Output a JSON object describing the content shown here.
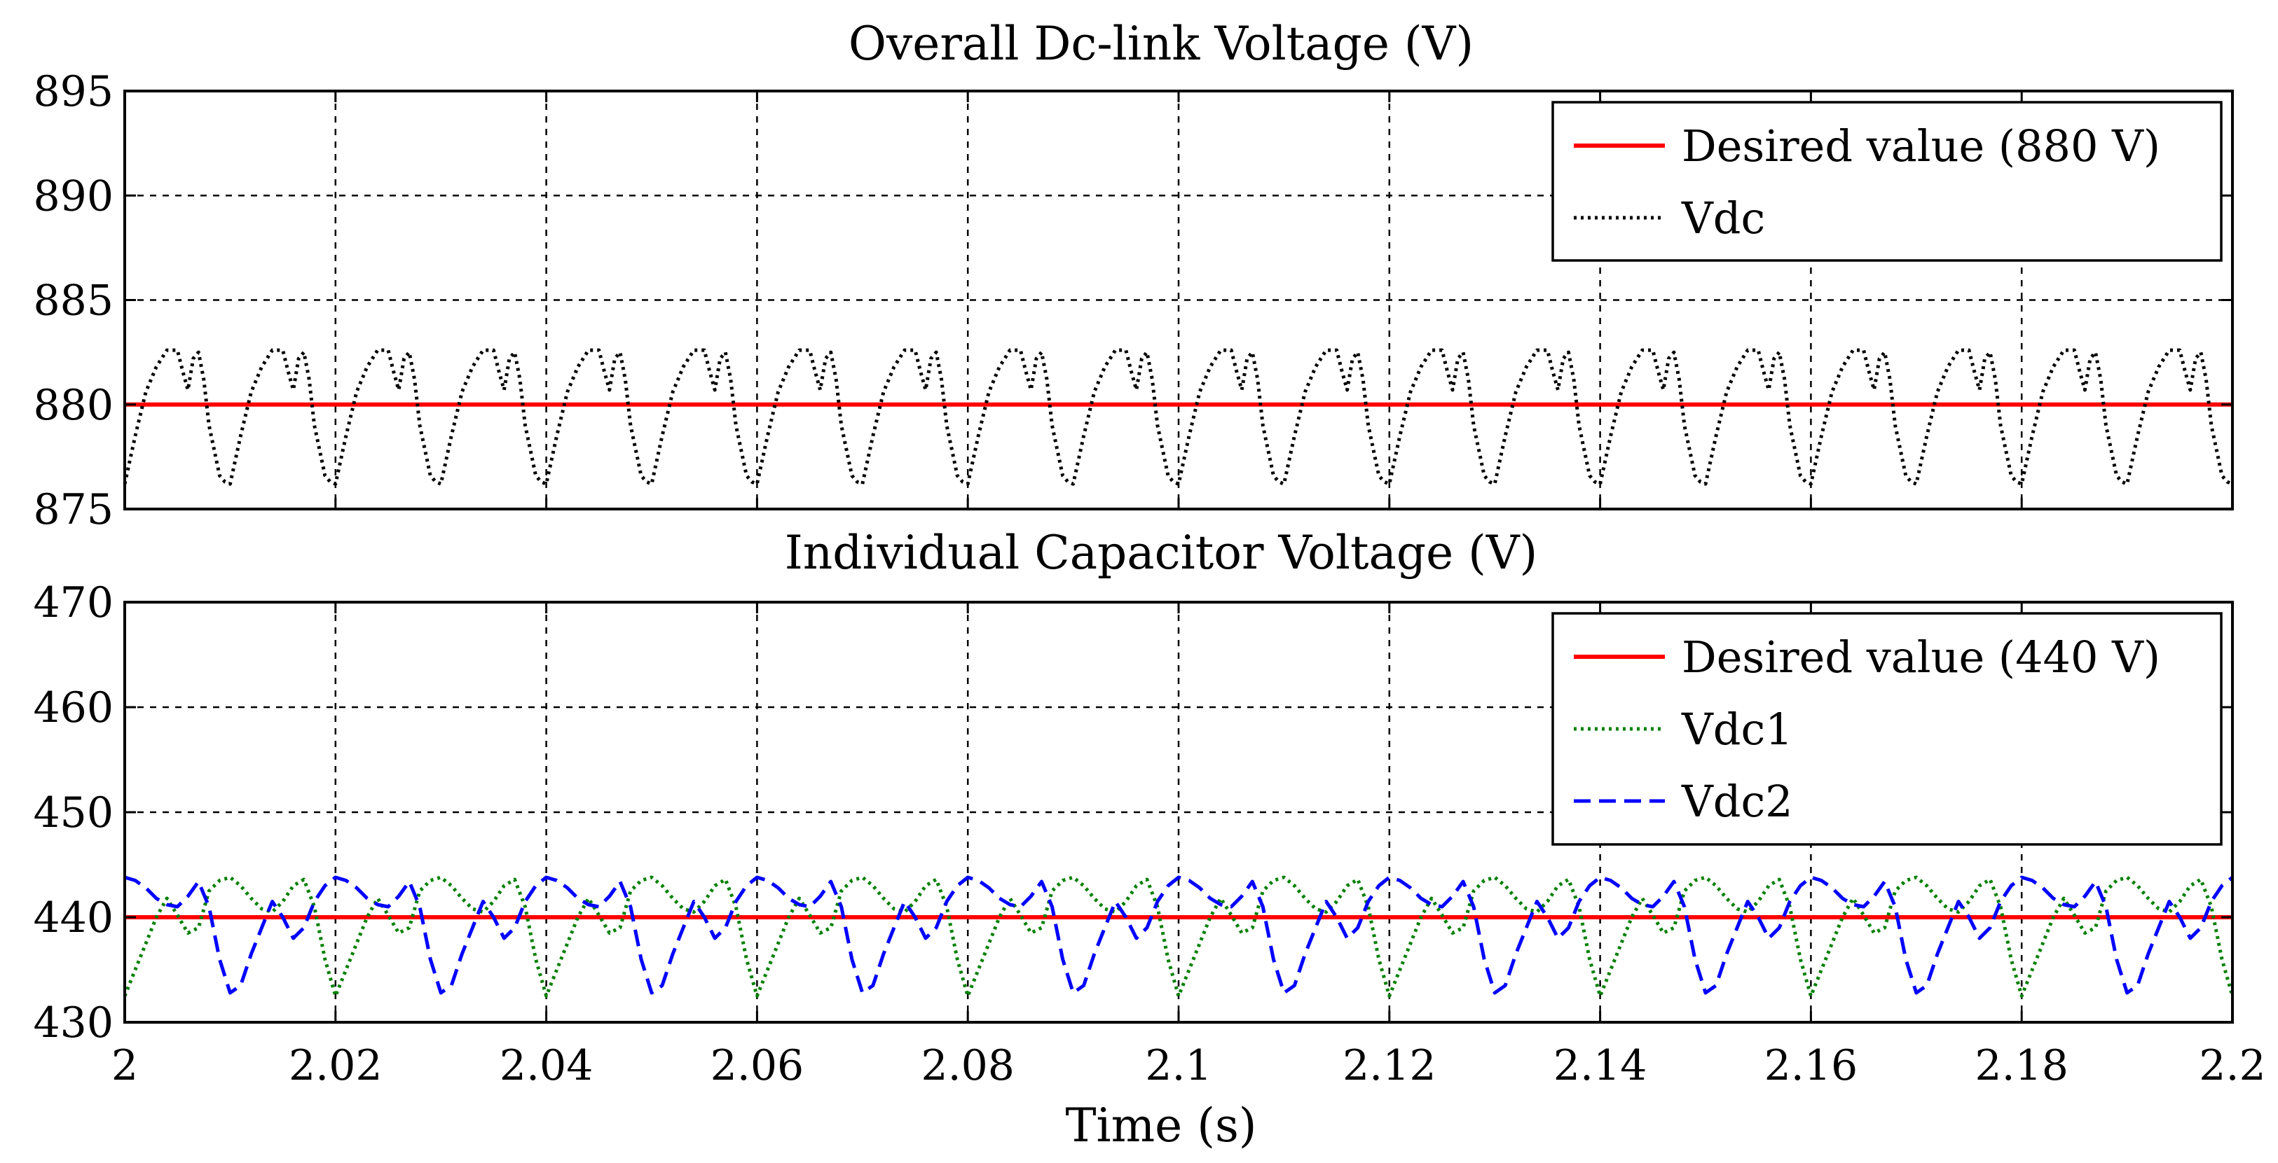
{
  "chart_data": [
    {
      "type": "line",
      "title": "Overall Dc-link Voltage (V)",
      "xlabel": "",
      "ylabel": "",
      "xlim": [
        2,
        2.2
      ],
      "ylim": [
        875,
        895
      ],
      "yticks": [
        "875",
        "880",
        "885",
        "890",
        "895"
      ],
      "grid": true,
      "legend_position": "top-right",
      "series": [
        {
          "name": "Desired value (880 V)",
          "color": "#ff0000",
          "style": "solid",
          "x": [
            2,
            2.2
          ],
          "y": [
            880,
            880
          ]
        },
        {
          "name": "Vdc",
          "color": "#000000",
          "style": "dotted",
          "period": 0.01,
          "x": [
            2.0,
            2.001,
            2.002,
            2.003,
            2.004,
            2.005,
            2.0055,
            2.006,
            2.0065,
            2.007,
            2.0075,
            2.008,
            2.009,
            2.0095,
            2.01
          ],
          "y": [
            876.2,
            878.5,
            880.6,
            881.8,
            882.6,
            882.6,
            881.6,
            880.7,
            882.2,
            882.5,
            881.2,
            879.0,
            876.6,
            876.3,
            876.2
          ]
        }
      ]
    },
    {
      "type": "line",
      "title": "Individual Capacitor Voltage (V)",
      "xlabel": "Time (s)",
      "ylabel": "",
      "xlim": [
        2,
        2.2
      ],
      "ylim": [
        430,
        470
      ],
      "yticks": [
        "430",
        "440",
        "450",
        "460",
        "470"
      ],
      "xticks": [
        "2",
        "2.02",
        "2.04",
        "2.06",
        "2.08",
        "2.1",
        "2.12",
        "2.14",
        "2.16",
        "2.18",
        "2.2"
      ],
      "grid": true,
      "legend_position": "top-right",
      "series": [
        {
          "name": "Desired value (440 V)",
          "color": "#ff0000",
          "style": "solid",
          "x": [
            2,
            2.2
          ],
          "y": [
            440,
            440
          ]
        },
        {
          "name": "Vdc1",
          "color": "#008000",
          "style": "dotted",
          "period": 0.02,
          "x": [
            2.0,
            2.001,
            2.002,
            2.003,
            2.004,
            2.005,
            2.006,
            2.007,
            2.008,
            2.009,
            2.01,
            2.011,
            2.012,
            2.013,
            2.014,
            2.015,
            2.016,
            2.017,
            2.018,
            2.019,
            2.02
          ],
          "y": [
            432.5,
            435.0,
            437.5,
            440.0,
            441.8,
            440.2,
            438.5,
            439.0,
            442.5,
            443.5,
            443.8,
            443.0,
            441.8,
            440.8,
            440.5,
            441.5,
            443.0,
            443.6,
            441.0,
            436.0,
            432.5
          ]
        },
        {
          "name": "Vdc2",
          "color": "#0000ff",
          "style": "dashed",
          "period": 0.02,
          "x": [
            2.0,
            2.001,
            2.002,
            2.003,
            2.004,
            2.005,
            2.006,
            2.007,
            2.008,
            2.009,
            2.01,
            2.011,
            2.012,
            2.013,
            2.014,
            2.015,
            2.016,
            2.017,
            2.018,
            2.019,
            2.02
          ],
          "y": [
            443.8,
            443.5,
            442.8,
            441.8,
            441.2,
            441.0,
            442.0,
            443.4,
            441.0,
            436.0,
            432.8,
            433.5,
            436.5,
            439.0,
            441.5,
            440.0,
            438.0,
            439.0,
            441.5,
            443.0,
            443.8
          ]
        }
      ]
    }
  ]
}
